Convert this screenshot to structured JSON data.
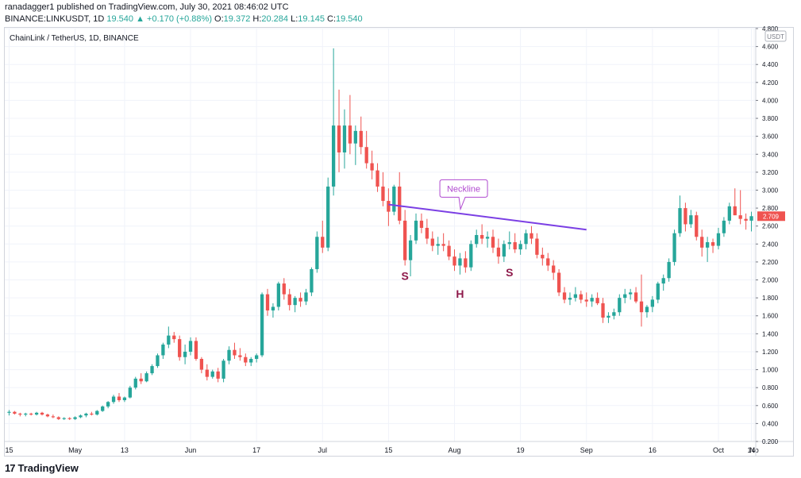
{
  "header": {
    "published": "ranadagger1 published on TradingView.com, July 30, 2021 08:46:02 UTC",
    "symbol": "BINANCE:LINKUSDT, 1D",
    "last": "19.540",
    "change": "▲ +0.170 (+0.88%)",
    "ohlc_open_label": "O:",
    "ohlc_open": "19.372",
    "ohlc_high_label": "H:",
    "ohlc_high": "20.284",
    "ohlc_low_label": "L:",
    "ohlc_low": "19.145",
    "ohlc_close_label": "C:",
    "ohlc_close": "19.540"
  },
  "instrument_title": "ChainLink / TetherUS, 1D, BINANCE",
  "currency_label": "USDT",
  "last_price_tag": "2.709",
  "footer": {
    "logo_text": "TradingView",
    "logo_mark": "17"
  },
  "colors": {
    "up": "#26a69a",
    "down": "#ef5350",
    "neckline": "#7b3fe4",
    "annotation": "#8e1a4b",
    "callout": "#b04ad0"
  },
  "chart_data": {
    "type": "candlestick",
    "y_axis": {
      "range": [
        0.2,
        4.8
      ],
      "tick_labels": [
        "0.200",
        "0.400",
        "0.600",
        "0.800",
        "1.000",
        "1.200",
        "1.400",
        "1.600",
        "1.800",
        "2.000",
        "2.200",
        "2.400",
        "2.600",
        "2.800",
        "3.000",
        "3.200",
        "3.400",
        "3.600",
        "3.800",
        "4.000",
        "4.200",
        "4.400",
        "4.600",
        "4.800"
      ]
    },
    "x_axis": {
      "tick_labels": [
        "15",
        "May",
        "13",
        "Jun",
        "17",
        "Jul",
        "15",
        "Aug",
        "19",
        "Sep",
        "16",
        "Oct",
        "14",
        "No"
      ]
    },
    "candles": [
      [
        0.52,
        0.55,
        0.49,
        0.53
      ],
      [
        0.53,
        0.54,
        0.5,
        0.51
      ],
      [
        0.51,
        0.52,
        0.48,
        0.5
      ],
      [
        0.5,
        0.52,
        0.48,
        0.51
      ],
      [
        0.51,
        0.52,
        0.49,
        0.5
      ],
      [
        0.5,
        0.53,
        0.49,
        0.52
      ],
      [
        0.52,
        0.53,
        0.49,
        0.5
      ],
      [
        0.5,
        0.51,
        0.47,
        0.48
      ],
      [
        0.48,
        0.5,
        0.46,
        0.47
      ],
      [
        0.47,
        0.48,
        0.44,
        0.45
      ],
      [
        0.45,
        0.47,
        0.44,
        0.46
      ],
      [
        0.46,
        0.47,
        0.44,
        0.45
      ],
      [
        0.45,
        0.48,
        0.44,
        0.47
      ],
      [
        0.47,
        0.5,
        0.46,
        0.49
      ],
      [
        0.49,
        0.52,
        0.47,
        0.51
      ],
      [
        0.51,
        0.53,
        0.49,
        0.5
      ],
      [
        0.5,
        0.55,
        0.49,
        0.54
      ],
      [
        0.54,
        0.6,
        0.53,
        0.59
      ],
      [
        0.59,
        0.65,
        0.57,
        0.64
      ],
      [
        0.64,
        0.72,
        0.62,
        0.7
      ],
      [
        0.7,
        0.74,
        0.64,
        0.66
      ],
      [
        0.66,
        0.7,
        0.64,
        0.69
      ],
      [
        0.69,
        0.82,
        0.68,
        0.8
      ],
      [
        0.8,
        0.92,
        0.78,
        0.9
      ],
      [
        0.9,
        0.96,
        0.84,
        0.87
      ],
      [
        0.87,
        0.98,
        0.86,
        0.96
      ],
      [
        0.96,
        1.06,
        0.94,
        1.04
      ],
      [
        1.04,
        1.18,
        1.02,
        1.16
      ],
      [
        1.16,
        1.3,
        1.12,
        1.28
      ],
      [
        1.28,
        1.48,
        1.24,
        1.38
      ],
      [
        1.38,
        1.42,
        1.3,
        1.34
      ],
      [
        1.34,
        1.38,
        1.1,
        1.14
      ],
      [
        1.14,
        1.28,
        1.06,
        1.2
      ],
      [
        1.2,
        1.36,
        1.16,
        1.32
      ],
      [
        1.32,
        1.36,
        1.1,
        1.12
      ],
      [
        1.12,
        1.14,
        0.96,
        1.0
      ],
      [
        1.0,
        1.06,
        0.88,
        0.92
      ],
      [
        0.92,
        1.0,
        0.9,
        0.98
      ],
      [
        0.98,
        1.02,
        0.86,
        0.9
      ],
      [
        0.9,
        1.12,
        0.86,
        1.1
      ],
      [
        1.1,
        1.26,
        1.06,
        1.22
      ],
      [
        1.22,
        1.3,
        1.12,
        1.16
      ],
      [
        1.16,
        1.24,
        1.1,
        1.14
      ],
      [
        1.14,
        1.18,
        1.04,
        1.08
      ],
      [
        1.08,
        1.14,
        1.04,
        1.12
      ],
      [
        1.12,
        1.18,
        1.08,
        1.16
      ],
      [
        1.16,
        1.86,
        1.14,
        1.84
      ],
      [
        1.84,
        1.9,
        1.6,
        1.66
      ],
      [
        1.66,
        1.74,
        1.58,
        1.7
      ],
      [
        1.7,
        1.98,
        1.66,
        1.96
      ],
      [
        1.96,
        2.02,
        1.78,
        1.84
      ],
      [
        1.84,
        1.9,
        1.66,
        1.72
      ],
      [
        1.72,
        1.82,
        1.64,
        1.8
      ],
      [
        1.8,
        1.86,
        1.7,
        1.76
      ],
      [
        1.76,
        1.9,
        1.72,
        1.86
      ],
      [
        1.86,
        2.14,
        1.82,
        2.12
      ],
      [
        2.12,
        2.54,
        2.08,
        2.48
      ],
      [
        2.48,
        2.66,
        2.3,
        2.36
      ],
      [
        2.36,
        3.14,
        2.32,
        3.04
      ],
      [
        3.04,
        4.58,
        2.94,
        3.72
      ],
      [
        3.72,
        4.12,
        3.2,
        3.42
      ],
      [
        3.42,
        3.9,
        3.24,
        3.72
      ],
      [
        3.72,
        4.06,
        3.4,
        3.52
      ],
      [
        3.52,
        3.72,
        3.28,
        3.66
      ],
      [
        3.66,
        3.82,
        3.4,
        3.48
      ],
      [
        3.48,
        3.66,
        3.24,
        3.3
      ],
      [
        3.3,
        3.44,
        3.12,
        3.22
      ],
      [
        3.22,
        3.3,
        2.98,
        3.04
      ],
      [
        3.04,
        3.2,
        2.82,
        2.88
      ],
      [
        2.88,
        3.02,
        2.6,
        2.76
      ],
      [
        2.76,
        3.06,
        2.72,
        3.04
      ],
      [
        3.04,
        3.2,
        2.62,
        2.66
      ],
      [
        2.66,
        2.78,
        2.16,
        2.22
      ],
      [
        2.22,
        2.5,
        2.04,
        2.44
      ],
      [
        2.44,
        2.74,
        2.4,
        2.66
      ],
      [
        2.66,
        2.74,
        2.52,
        2.58
      ],
      [
        2.58,
        2.68,
        2.4,
        2.46
      ],
      [
        2.46,
        2.54,
        2.32,
        2.38
      ],
      [
        2.38,
        2.48,
        2.28,
        2.4
      ],
      [
        2.4,
        2.52,
        2.32,
        2.38
      ],
      [
        2.38,
        2.44,
        2.22,
        2.26
      ],
      [
        2.26,
        2.34,
        2.1,
        2.16
      ],
      [
        2.16,
        2.3,
        2.06,
        2.24
      ],
      [
        2.24,
        2.32,
        2.08,
        2.14
      ],
      [
        2.14,
        2.44,
        2.1,
        2.4
      ],
      [
        2.4,
        2.56,
        2.36,
        2.5
      ],
      [
        2.5,
        2.62,
        2.4,
        2.46
      ],
      [
        2.46,
        2.54,
        2.36,
        2.48
      ],
      [
        2.48,
        2.56,
        2.3,
        2.36
      ],
      [
        2.36,
        2.46,
        2.18,
        2.26
      ],
      [
        2.26,
        2.44,
        2.2,
        2.4
      ],
      [
        2.4,
        2.54,
        2.34,
        2.42
      ],
      [
        2.42,
        2.52,
        2.3,
        2.34
      ],
      [
        2.34,
        2.44,
        2.28,
        2.4
      ],
      [
        2.4,
        2.56,
        2.34,
        2.52
      ],
      [
        2.52,
        2.6,
        2.4,
        2.46
      ],
      [
        2.46,
        2.52,
        2.24,
        2.28
      ],
      [
        2.28,
        2.36,
        2.16,
        2.24
      ],
      [
        2.24,
        2.3,
        2.1,
        2.16
      ],
      [
        2.16,
        2.22,
        2.0,
        2.08
      ],
      [
        2.08,
        2.12,
        1.82,
        1.86
      ],
      [
        1.86,
        1.92,
        1.74,
        1.78
      ],
      [
        1.78,
        1.86,
        1.72,
        1.8
      ],
      [
        1.8,
        1.92,
        1.76,
        1.84
      ],
      [
        1.84,
        1.88,
        1.74,
        1.78
      ],
      [
        1.78,
        1.86,
        1.7,
        1.76
      ],
      [
        1.76,
        1.84,
        1.7,
        1.8
      ],
      [
        1.8,
        1.86,
        1.72,
        1.74
      ],
      [
        1.74,
        1.8,
        1.52,
        1.58
      ],
      [
        1.58,
        1.64,
        1.52,
        1.6
      ],
      [
        1.6,
        1.68,
        1.56,
        1.64
      ],
      [
        1.64,
        1.84,
        1.6,
        1.8
      ],
      [
        1.8,
        1.9,
        1.74,
        1.84
      ],
      [
        1.84,
        1.9,
        1.78,
        1.86
      ],
      [
        1.86,
        1.92,
        1.74,
        1.76
      ],
      [
        1.76,
        2.06,
        1.48,
        1.64
      ],
      [
        1.64,
        1.72,
        1.58,
        1.7
      ],
      [
        1.7,
        1.82,
        1.64,
        1.78
      ],
      [
        1.78,
        1.98,
        1.74,
        1.96
      ],
      [
        1.96,
        2.06,
        1.88,
        2.02
      ],
      [
        2.02,
        2.24,
        1.98,
        2.2
      ],
      [
        2.2,
        2.56,
        2.16,
        2.52
      ],
      [
        2.52,
        2.94,
        2.48,
        2.8
      ],
      [
        2.8,
        2.86,
        2.54,
        2.62
      ],
      [
        2.62,
        2.78,
        2.58,
        2.72
      ],
      [
        2.72,
        2.76,
        2.44,
        2.48
      ],
      [
        2.48,
        2.56,
        2.26,
        2.36
      ],
      [
        2.36,
        2.48,
        2.2,
        2.42
      ],
      [
        2.42,
        2.46,
        2.3,
        2.38
      ],
      [
        2.38,
        2.58,
        2.34,
        2.52
      ],
      [
        2.52,
        2.7,
        2.48,
        2.66
      ],
      [
        2.66,
        2.86,
        2.62,
        2.82
      ],
      [
        2.82,
        3.02,
        2.72,
        2.72
      ],
      [
        2.72,
        3.0,
        2.62,
        2.68
      ],
      [
        2.68,
        2.74,
        2.56,
        2.66
      ],
      [
        2.66,
        2.76,
        2.54,
        2.71
      ]
    ],
    "neckline": {
      "from": [
        69,
        2.84
      ],
      "to": [
        105,
        2.56
      ]
    },
    "annotations": [
      {
        "text": "S",
        "x": 72,
        "y": 2.0
      },
      {
        "text": "H",
        "x": 82,
        "y": 1.8
      },
      {
        "text": "S",
        "x": 91,
        "y": 2.04
      },
      {
        "text": "Neckline",
        "type": "callout"
      }
    ]
  }
}
